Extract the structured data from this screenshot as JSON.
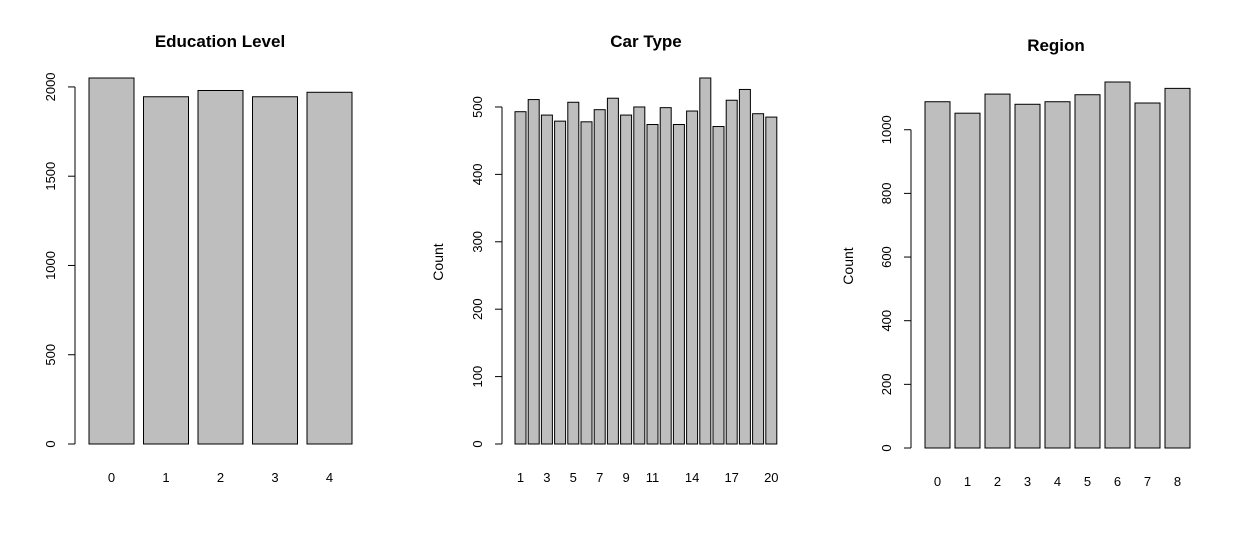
{
  "chart_data": [
    {
      "type": "bar",
      "title": "Education Level",
      "xlabel": "",
      "ylabel": "",
      "categories": [
        "0",
        "1",
        "2",
        "3",
        "4"
      ],
      "values": [
        2050,
        1945,
        1980,
        1945,
        1970
      ],
      "category_tick_labels": [
        "0",
        "1",
        "2",
        "3",
        "4"
      ],
      "ylim": [
        0,
        2050
      ],
      "yticks": [
        0,
        500,
        1000,
        1500,
        2000
      ],
      "ytick_labels": [
        "0",
        "500",
        "1000",
        "1500",
        "2000"
      ]
    },
    {
      "type": "bar",
      "title": "Car Type",
      "xlabel": "",
      "ylabel": "Count",
      "categories": [
        "1",
        "2",
        "3",
        "4",
        "5",
        "6",
        "7",
        "8",
        "9",
        "10",
        "11",
        "12",
        "13",
        "14",
        "15",
        "16",
        "17",
        "18",
        "19",
        "20"
      ],
      "values": [
        493,
        511,
        488,
        479,
        507,
        478,
        496,
        513,
        488,
        500,
        474,
        499,
        474,
        494,
        543,
        471,
        510,
        526,
        490,
        485
      ],
      "category_tick_labels": [
        "1",
        "",
        "3",
        "",
        "5",
        "",
        "7",
        "",
        "9",
        "",
        "11",
        "",
        "",
        "14",
        "",
        "",
        "17",
        "",
        "",
        "20"
      ],
      "ylim": [
        0,
        543
      ],
      "yticks": [
        0,
        100,
        200,
        300,
        400,
        500
      ],
      "ytick_labels": [
        "0",
        "100",
        "200",
        "300",
        "400",
        "500"
      ]
    },
    {
      "type": "bar",
      "title": "Region",
      "xlabel": "",
      "ylabel": "Count",
      "categories": [
        "0",
        "1",
        "2",
        "3",
        "4",
        "5",
        "6",
        "7",
        "8"
      ],
      "values": [
        1088,
        1052,
        1112,
        1080,
        1088,
        1110,
        1150,
        1084,
        1130
      ],
      "category_tick_labels": [
        "0",
        "1",
        "2",
        "3",
        "4",
        "5",
        "6",
        "7",
        "8"
      ],
      "ylim": [
        0,
        1150
      ],
      "yticks": [
        0,
        200,
        400,
        600,
        800,
        1000
      ],
      "ytick_labels": [
        "0",
        "200",
        "400",
        "600",
        "800",
        "1000"
      ]
    }
  ]
}
